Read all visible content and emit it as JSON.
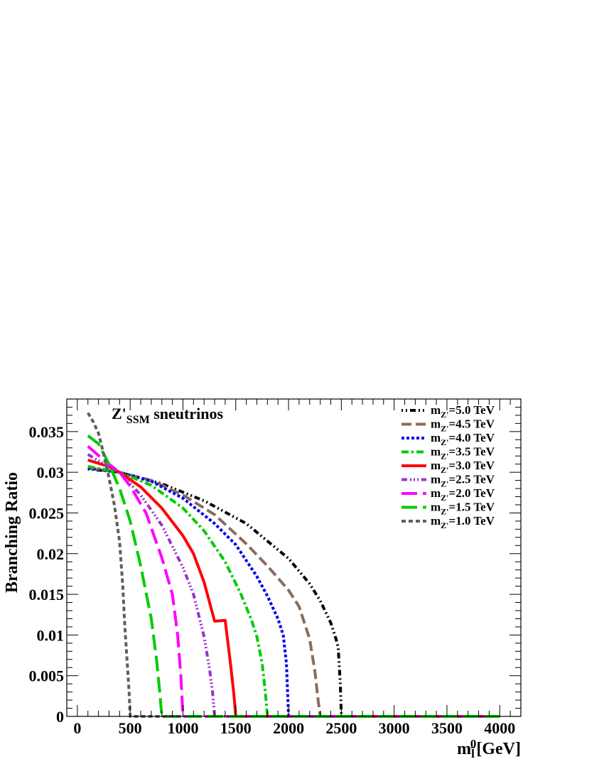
{
  "chart_data": {
    "type": "line",
    "title": "Z'",
    "title_sub": "SSM",
    "title_suffix": " sneutrinos",
    "xlabel": "m",
    "xlabel_sub": "l̃",
    "xlabel_sup": "0",
    "xlabel_unit": "[GeV]",
    "ylabel": "Branching Ratio",
    "xlim": [
      -100,
      4200
    ],
    "ylim": [
      0,
      0.039
    ],
    "xticks": [
      0,
      500,
      1000,
      1500,
      2000,
      2500,
      3000,
      3500,
      4000
    ],
    "xtick_labels": [
      "0",
      "500",
      "1000",
      "1500",
      "2000",
      "2500",
      "3000",
      "3500",
      "4000"
    ],
    "yticks": [
      0,
      0.005,
      0.01,
      0.015,
      0.02,
      0.025,
      0.03,
      0.035
    ],
    "ytick_labels": [
      "0",
      "0.005",
      "0.01",
      "0.015",
      "0.02",
      "0.025",
      "0.03",
      "0.035"
    ],
    "grid": false,
    "legend_position": "top-right",
    "series": [
      {
        "label_pre": "m",
        "label_sub": "Z'",
        "label_post": "=5.0 TeV",
        "color": "#000000",
        "dash": "2,4,2,4,8,4",
        "x": [
          100,
          400,
          800,
          1200,
          1600,
          2000,
          2200,
          2300,
          2400,
          2450,
          2470,
          2490,
          2500,
          4000
        ],
        "y": [
          0.0304,
          0.03,
          0.0286,
          0.0265,
          0.0237,
          0.0194,
          0.0163,
          0.0142,
          0.0115,
          0.0095,
          0.0085,
          0.004,
          0,
          0
        ]
      },
      {
        "label_pre": "m",
        "label_sub": "Z'",
        "label_post": "=4.5 TeV",
        "color": "#8a6c5c",
        "dash": "14,6",
        "x": [
          100,
          400,
          700,
          1000,
          1300,
          1600,
          1800,
          2000,
          2100,
          2200,
          2250,
          2280,
          2300,
          4000
        ],
        "y": [
          0.0305,
          0.03,
          0.029,
          0.0272,
          0.0248,
          0.0212,
          0.0185,
          0.0155,
          0.0135,
          0.0095,
          0.0055,
          0.002,
          0,
          0
        ]
      },
      {
        "label_pre": "m",
        "label_sub": "Z'",
        "label_post": "=4.0 TeV",
        "color": "#0000ee",
        "dash": "4,3",
        "x": [
          100,
          400,
          700,
          1000,
          1300,
          1500,
          1700,
          1800,
          1900,
          1950,
          1980,
          2000,
          4000
        ],
        "y": [
          0.0305,
          0.03,
          0.0289,
          0.0268,
          0.0237,
          0.0211,
          0.0172,
          0.0148,
          0.012,
          0.01,
          0.0065,
          0,
          0
        ]
      },
      {
        "label_pre": "m",
        "label_sub": "Z'",
        "label_post": "=3.5 TeV",
        "color": "#00cc00",
        "dash": "10,4,3,4",
        "x": [
          100,
          400,
          700,
          1000,
          1200,
          1400,
          1550,
          1650,
          1700,
          1750,
          1780,
          1800,
          4000
        ],
        "y": [
          0.0307,
          0.03,
          0.0284,
          0.0256,
          0.0228,
          0.019,
          0.015,
          0.0118,
          0.0098,
          0.0065,
          0.003,
          0,
          0
        ]
      },
      {
        "label_pre": "m",
        "label_sub": "Z'",
        "label_post": "=3.0 TeV",
        "color": "#ff0000",
        "dash": "",
        "x": [
          100,
          300,
          400,
          600,
          800,
          1000,
          1100,
          1200,
          1300,
          1400,
          1450,
          1480,
          1500,
          4000
        ],
        "y": [
          0.0315,
          0.0307,
          0.03,
          0.0282,
          0.0256,
          0.0222,
          0.02,
          0.0165,
          0.0117,
          0.0118,
          0.0065,
          0.003,
          0,
          0
        ]
      },
      {
        "label_pre": "m",
        "label_sub": "Z'",
        "label_post": "=2.5 TeV",
        "color": "#9933cc",
        "dash": "8,4,2,3,2,3,2,4",
        "x": [
          100,
          250,
          400,
          600,
          800,
          1000,
          1100,
          1200,
          1250,
          1280,
          1300,
          4000
        ],
        "y": [
          0.0322,
          0.031,
          0.03,
          0.0272,
          0.0235,
          0.0183,
          0.015,
          0.0098,
          0.006,
          0.003,
          0,
          0
        ]
      },
      {
        "label_pre": "m",
        "label_sub": "Z'",
        "label_post": "=2.0 TeV",
        "color": "#ff00ff",
        "dash": "22,8",
        "x": [
          100,
          250,
          400,
          500,
          650,
          800,
          900,
          950,
          980,
          1000,
          4000
        ],
        "y": [
          0.0332,
          0.0315,
          0.03,
          0.0283,
          0.025,
          0.0195,
          0.015,
          0.01,
          0.005,
          0,
          0
        ]
      },
      {
        "label_pre": "m",
        "label_sub": "Z'",
        "label_post": "=1.5 TeV",
        "color": "#00cc00",
        "dash": "22,8",
        "x": [
          100,
          200,
          300,
          400,
          500,
          600,
          700,
          750,
          780,
          800,
          4000
        ],
        "y": [
          0.0345,
          0.0335,
          0.031,
          0.028,
          0.024,
          0.0185,
          0.012,
          0.007,
          0.003,
          0,
          0
        ]
      },
      {
        "label_pre": "m",
        "label_sub": "Z'",
        "label_post": "=1.0 TeV",
        "color": "#5f5f5f",
        "dash": "6,4",
        "x": [
          100,
          150,
          200,
          250,
          300,
          350,
          400,
          430,
          450,
          470,
          490,
          500,
          1000
        ],
        "y": [
          0.0373,
          0.0362,
          0.0348,
          0.0322,
          0.0293,
          0.026,
          0.0215,
          0.016,
          0.011,
          0.007,
          0.003,
          0,
          0
        ]
      }
    ]
  }
}
